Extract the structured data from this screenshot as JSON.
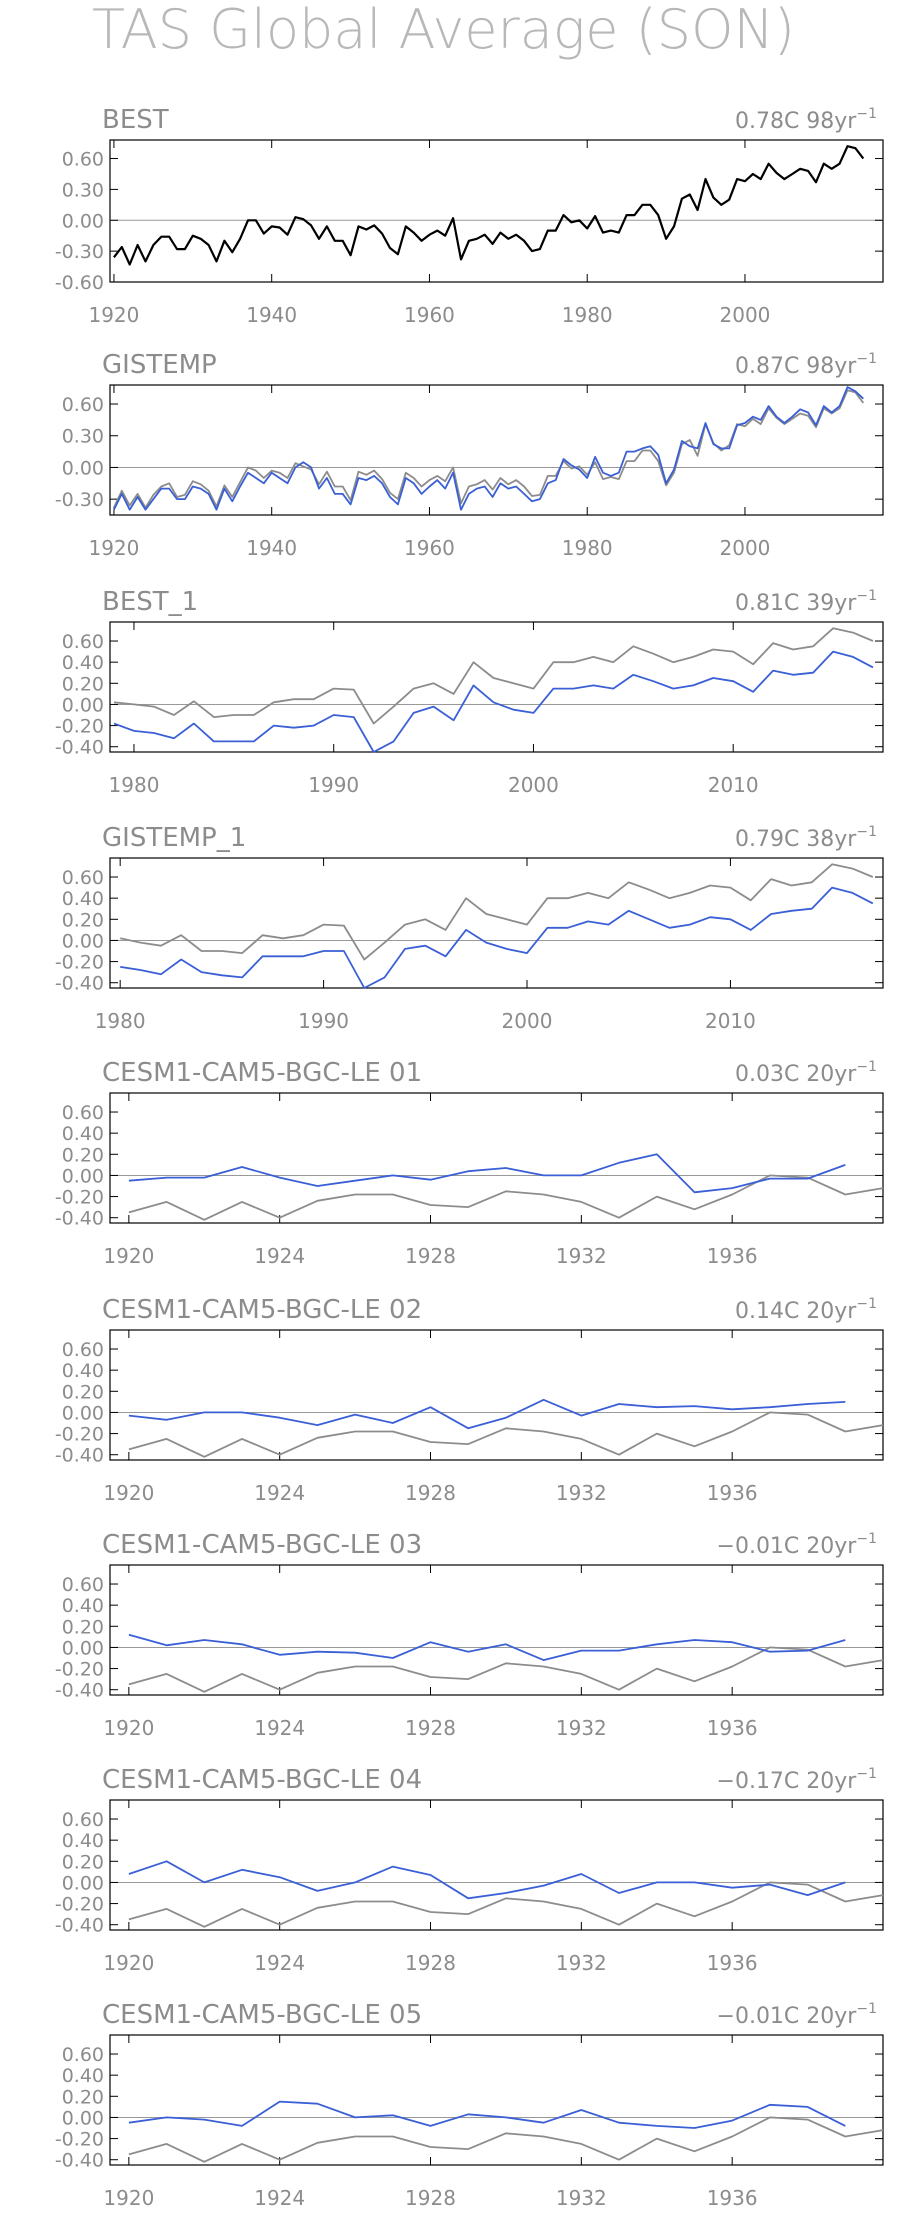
{
  "page_title": "TAS Global Average (SON)",
  "colors": {
    "observed": "#000000",
    "model": "#3a5fd6",
    "reference": "#8c8c8c",
    "axis": "#000000",
    "text": "#8c8c8c",
    "zero": "#999999"
  },
  "chart_data": [
    {
      "type": "line",
      "title": "BEST",
      "stat": "0.78C 98yr",
      "stat_exp": "−1",
      "xticks": [
        1920,
        1940,
        1960,
        1980,
        2000
      ],
      "xlim": [
        1919.5,
        2017.5
      ],
      "ylim": [
        -0.6,
        0.78
      ],
      "yticks": [
        "0.60",
        "0.30",
        "0.00",
        "-0.30",
        "-0.60"
      ],
      "series": [
        {
          "role": "observed",
          "x_start": 1920,
          "values": [
            -0.36,
            -0.26,
            -0.43,
            -0.24,
            -0.4,
            -0.24,
            -0.16,
            -0.16,
            -0.28,
            -0.28,
            -0.15,
            -0.18,
            -0.24,
            -0.4,
            -0.2,
            -0.31,
            -0.18,
            0.0,
            0.0,
            -0.13,
            -0.06,
            -0.07,
            -0.14,
            0.03,
            0.01,
            -0.05,
            -0.18,
            -0.06,
            -0.2,
            -0.2,
            -0.34,
            -0.06,
            -0.09,
            -0.05,
            -0.13,
            -0.27,
            -0.33,
            -0.06,
            -0.12,
            -0.2,
            -0.14,
            -0.1,
            -0.15,
            0.02,
            -0.38,
            -0.2,
            -0.18,
            -0.14,
            -0.23,
            -0.12,
            -0.18,
            -0.14,
            -0.2,
            -0.3,
            -0.28,
            -0.1,
            -0.1,
            0.05,
            -0.02,
            0.0,
            -0.08,
            0.04,
            -0.12,
            -0.1,
            -0.12,
            0.05,
            0.05,
            0.15,
            0.15,
            0.05,
            -0.18,
            -0.06,
            0.21,
            0.25,
            0.1,
            0.4,
            0.22,
            0.15,
            0.2,
            0.4,
            0.38,
            0.45,
            0.4,
            0.55,
            0.46,
            0.4,
            0.45,
            0.5,
            0.48,
            0.37,
            0.55,
            0.5,
            0.55,
            0.72,
            0.7,
            0.6
          ]
        }
      ]
    },
    {
      "type": "line",
      "title": "GISTEMP",
      "stat": "0.87C 98yr",
      "stat_exp": "−1",
      "xticks": [
        1920,
        1940,
        1960,
        1980,
        2000
      ],
      "xlim": [
        1919.5,
        2017.5
      ],
      "ylim": [
        -0.45,
        0.78
      ],
      "yticks": [
        "0.60",
        "0.30",
        "0.00",
        "-0.30"
      ],
      "series": [
        {
          "role": "reference",
          "x_start": 1920,
          "values": [
            -0.38,
            -0.22,
            -0.36,
            -0.25,
            -0.38,
            -0.26,
            -0.18,
            -0.15,
            -0.28,
            -0.26,
            -0.13,
            -0.16,
            -0.22,
            -0.37,
            -0.17,
            -0.28,
            -0.14,
            0.0,
            -0.03,
            -0.1,
            -0.03,
            -0.05,
            -0.1,
            0.04,
            0.01,
            -0.02,
            -0.16,
            -0.04,
            -0.18,
            -0.18,
            -0.31,
            -0.04,
            -0.07,
            -0.03,
            -0.11,
            -0.24,
            -0.3,
            -0.05,
            -0.1,
            -0.18,
            -0.12,
            -0.08,
            -0.13,
            0.0,
            -0.34,
            -0.18,
            -0.16,
            -0.12,
            -0.21,
            -0.1,
            -0.16,
            -0.12,
            -0.18,
            -0.27,
            -0.26,
            -0.08,
            -0.08,
            0.06,
            -0.01,
            0.01,
            -0.07,
            0.05,
            -0.11,
            -0.09,
            -0.11,
            0.06,
            0.06,
            0.16,
            0.16,
            0.06,
            -0.17,
            -0.05,
            0.22,
            0.26,
            0.11,
            0.41,
            0.23,
            0.16,
            0.21,
            0.41,
            0.39,
            0.46,
            0.41,
            0.56,
            0.47,
            0.41,
            0.46,
            0.51,
            0.49,
            0.38,
            0.56,
            0.51,
            0.56,
            0.73,
            0.71,
            0.61
          ]
        },
        {
          "role": "model",
          "x_start": 1920,
          "values": [
            -0.4,
            -0.25,
            -0.4,
            -0.28,
            -0.4,
            -0.3,
            -0.2,
            -0.2,
            -0.3,
            -0.3,
            -0.18,
            -0.2,
            -0.25,
            -0.4,
            -0.2,
            -0.32,
            -0.18,
            -0.05,
            -0.1,
            -0.15,
            -0.05,
            -0.1,
            -0.15,
            0.0,
            0.05,
            0.0,
            -0.2,
            -0.1,
            -0.25,
            -0.25,
            -0.35,
            -0.1,
            -0.12,
            -0.08,
            -0.15,
            -0.28,
            -0.35,
            -0.1,
            -0.15,
            -0.25,
            -0.18,
            -0.12,
            -0.2,
            -0.05,
            -0.4,
            -0.25,
            -0.2,
            -0.18,
            -0.28,
            -0.15,
            -0.2,
            -0.18,
            -0.25,
            -0.32,
            -0.3,
            -0.15,
            -0.12,
            0.08,
            0.02,
            -0.02,
            -0.1,
            0.1,
            -0.05,
            -0.08,
            -0.05,
            0.15,
            0.15,
            0.18,
            0.2,
            0.12,
            -0.15,
            -0.02,
            0.25,
            0.2,
            0.18,
            0.42,
            0.22,
            0.18,
            0.18,
            0.4,
            0.42,
            0.48,
            0.45,
            0.58,
            0.48,
            0.42,
            0.48,
            0.55,
            0.52,
            0.4,
            0.58,
            0.52,
            0.58,
            0.76,
            0.72,
            0.65
          ]
        }
      ]
    },
    {
      "type": "line",
      "title": "BEST_1",
      "stat": "0.81C 39yr",
      "stat_exp": "−1",
      "xticks": [
        1980,
        1990,
        2000,
        2010
      ],
      "xlim": [
        1978.8,
        2017.5
      ],
      "ylim": [
        -0.45,
        0.78
      ],
      "yticks": [
        "0.60",
        "0.40",
        "0.20",
        "0.00",
        "-0.20",
        "-0.40"
      ],
      "series": [
        {
          "role": "reference",
          "x_start": 1979,
          "values": [
            0.02,
            0.0,
            -0.02,
            -0.1,
            0.03,
            -0.12,
            -0.1,
            -0.1,
            0.02,
            0.05,
            0.05,
            0.15,
            0.14,
            -0.18,
            -0.02,
            0.15,
            0.2,
            0.1,
            0.4,
            0.25,
            0.2,
            0.15,
            0.4,
            0.4,
            0.45,
            0.4,
            0.55,
            0.48,
            0.4,
            0.45,
            0.52,
            0.5,
            0.38,
            0.58,
            0.52,
            0.55,
            0.72,
            0.68,
            0.6
          ]
        },
        {
          "role": "model",
          "x_start": 1979,
          "values": [
            -0.18,
            -0.25,
            -0.27,
            -0.32,
            -0.18,
            -0.35,
            -0.35,
            -0.35,
            -0.2,
            -0.22,
            -0.2,
            -0.1,
            -0.12,
            -0.45,
            -0.35,
            -0.08,
            -0.02,
            -0.15,
            0.18,
            0.02,
            -0.05,
            -0.08,
            0.15,
            0.15,
            0.18,
            0.15,
            0.28,
            0.22,
            0.15,
            0.18,
            0.25,
            0.22,
            0.12,
            0.32,
            0.28,
            0.3,
            0.5,
            0.45,
            0.35
          ]
        }
      ]
    },
    {
      "type": "line",
      "title": "GISTEMP_1",
      "stat": "0.79C 38yr",
      "stat_exp": "−1",
      "xticks": [
        1980,
        1990,
        2000,
        2010
      ],
      "xlim": [
        1979.5,
        2017.5
      ],
      "ylim": [
        -0.45,
        0.78
      ],
      "yticks": [
        "0.60",
        "0.40",
        "0.20",
        "0.00",
        "-0.20",
        "-0.40"
      ],
      "series": [
        {
          "role": "reference",
          "x_start": 1980,
          "values": [
            0.02,
            -0.02,
            -0.05,
            0.05,
            -0.1,
            -0.1,
            -0.12,
            0.05,
            0.02,
            0.05,
            0.15,
            0.14,
            -0.18,
            -0.02,
            0.15,
            0.2,
            0.1,
            0.4,
            0.25,
            0.2,
            0.15,
            0.4,
            0.4,
            0.45,
            0.4,
            0.55,
            0.48,
            0.4,
            0.45,
            0.52,
            0.5,
            0.38,
            0.58,
            0.52,
            0.55,
            0.72,
            0.68,
            0.6
          ]
        },
        {
          "role": "model",
          "x_start": 1980,
          "values": [
            -0.25,
            -0.28,
            -0.32,
            -0.18,
            -0.3,
            -0.33,
            -0.35,
            -0.15,
            -0.15,
            -0.15,
            -0.1,
            -0.1,
            -0.45,
            -0.35,
            -0.08,
            -0.05,
            -0.15,
            0.1,
            -0.02,
            -0.08,
            -0.12,
            0.12,
            0.12,
            0.18,
            0.15,
            0.28,
            0.2,
            0.12,
            0.15,
            0.22,
            0.2,
            0.1,
            0.25,
            0.28,
            0.3,
            0.5,
            0.45,
            0.35
          ]
        }
      ]
    },
    {
      "type": "line",
      "title": "CESM1-CAM5-BGC-LE 01",
      "stat": "0.03C 20yr",
      "stat_exp": "−1",
      "xticks": [
        1920,
        1924,
        1928,
        1932,
        1936
      ],
      "xlim": [
        1919.5,
        1940.0
      ],
      "ylim": [
        -0.45,
        0.78
      ],
      "yticks": [
        "0.60",
        "0.40",
        "0.20",
        "0.00",
        "-0.20",
        "-0.40"
      ],
      "series": [
        {
          "role": "reference",
          "x_start": 1920,
          "values": [
            -0.35,
            -0.25,
            -0.42,
            -0.25,
            -0.4,
            -0.24,
            -0.18,
            -0.18,
            -0.28,
            -0.3,
            -0.15,
            -0.18,
            -0.25,
            -0.4,
            -0.2,
            -0.32,
            -0.18,
            0.0,
            -0.02,
            -0.18,
            -0.12
          ]
        },
        {
          "role": "model",
          "x_start": 1920,
          "values": [
            -0.05,
            -0.02,
            -0.02,
            0.08,
            -0.02,
            -0.1,
            -0.05,
            0.0,
            -0.04,
            0.04,
            0.07,
            0.0,
            0.0,
            0.12,
            0.2,
            -0.16,
            -0.12,
            -0.03,
            -0.03,
            0.1
          ]
        }
      ]
    },
    {
      "type": "line",
      "title": "CESM1-CAM5-BGC-LE 02",
      "stat": "0.14C 20yr",
      "stat_exp": "−1",
      "xticks": [
        1920,
        1924,
        1928,
        1932,
        1936
      ],
      "xlim": [
        1919.5,
        1940.0
      ],
      "ylim": [
        -0.45,
        0.78
      ],
      "yticks": [
        "0.60",
        "0.40",
        "0.20",
        "0.00",
        "-0.20",
        "-0.40"
      ],
      "series": [
        {
          "role": "reference",
          "x_start": 1920,
          "values": [
            -0.35,
            -0.25,
            -0.42,
            -0.25,
            -0.4,
            -0.24,
            -0.18,
            -0.18,
            -0.28,
            -0.3,
            -0.15,
            -0.18,
            -0.25,
            -0.4,
            -0.2,
            -0.32,
            -0.18,
            0.0,
            -0.02,
            -0.18,
            -0.12
          ]
        },
        {
          "role": "model",
          "x_start": 1920,
          "values": [
            -0.03,
            -0.07,
            0.0,
            0.0,
            -0.05,
            -0.12,
            -0.02,
            -0.1,
            0.05,
            -0.15,
            -0.05,
            0.12,
            -0.03,
            0.08,
            0.05,
            0.06,
            0.03,
            0.05,
            0.08,
            0.1
          ]
        }
      ]
    },
    {
      "type": "line",
      "title": "CESM1-CAM5-BGC-LE 03",
      "stat": "−0.01C 20yr",
      "stat_exp": "−1",
      "xticks": [
        1920,
        1924,
        1928,
        1932,
        1936
      ],
      "xlim": [
        1919.5,
        1940.0
      ],
      "ylim": [
        -0.45,
        0.78
      ],
      "yticks": [
        "0.60",
        "0.40",
        "0.20",
        "0.00",
        "-0.20",
        "-0.40"
      ],
      "series": [
        {
          "role": "reference",
          "x_start": 1920,
          "values": [
            -0.35,
            -0.25,
            -0.42,
            -0.25,
            -0.4,
            -0.24,
            -0.18,
            -0.18,
            -0.28,
            -0.3,
            -0.15,
            -0.18,
            -0.25,
            -0.4,
            -0.2,
            -0.32,
            -0.18,
            0.0,
            -0.02,
            -0.18,
            -0.12
          ]
        },
        {
          "role": "model",
          "x_start": 1920,
          "values": [
            0.12,
            0.02,
            0.07,
            0.03,
            -0.07,
            -0.04,
            -0.05,
            -0.1,
            0.05,
            -0.04,
            0.03,
            -0.12,
            -0.03,
            -0.03,
            0.03,
            0.07,
            0.05,
            -0.04,
            -0.03,
            0.07
          ]
        }
      ]
    },
    {
      "type": "line",
      "title": "CESM1-CAM5-BGC-LE 04",
      "stat": "−0.17C 20yr",
      "stat_exp": "−1",
      "xticks": [
        1920,
        1924,
        1928,
        1932,
        1936
      ],
      "xlim": [
        1919.5,
        1940.0
      ],
      "ylim": [
        -0.45,
        0.78
      ],
      "yticks": [
        "0.60",
        "0.40",
        "0.20",
        "0.00",
        "-0.20",
        "-0.40"
      ],
      "series": [
        {
          "role": "reference",
          "x_start": 1920,
          "values": [
            -0.35,
            -0.25,
            -0.42,
            -0.25,
            -0.4,
            -0.24,
            -0.18,
            -0.18,
            -0.28,
            -0.3,
            -0.15,
            -0.18,
            -0.25,
            -0.4,
            -0.2,
            -0.32,
            -0.18,
            0.0,
            -0.02,
            -0.18,
            -0.12
          ]
        },
        {
          "role": "model",
          "x_start": 1920,
          "values": [
            0.08,
            0.2,
            0.0,
            0.12,
            0.05,
            -0.08,
            0.0,
            0.15,
            0.07,
            -0.15,
            -0.1,
            -0.03,
            0.08,
            -0.1,
            0.0,
            0.0,
            -0.05,
            -0.02,
            -0.12,
            0.0
          ]
        }
      ]
    },
    {
      "type": "line",
      "title": "CESM1-CAM5-BGC-LE 05",
      "stat": "−0.01C 20yr",
      "stat_exp": "−1",
      "xticks": [
        1920,
        1924,
        1928,
        1932,
        1936
      ],
      "xlim": [
        1919.5,
        1940.0
      ],
      "ylim": [
        -0.45,
        0.78
      ],
      "yticks": [
        "0.60",
        "0.40",
        "0.20",
        "0.00",
        "-0.20",
        "-0.40"
      ],
      "series": [
        {
          "role": "reference",
          "x_start": 1920,
          "values": [
            -0.35,
            -0.25,
            -0.42,
            -0.25,
            -0.4,
            -0.24,
            -0.18,
            -0.18,
            -0.28,
            -0.3,
            -0.15,
            -0.18,
            -0.25,
            -0.4,
            -0.2,
            -0.32,
            -0.18,
            0.0,
            -0.02,
            -0.18,
            -0.12
          ]
        },
        {
          "role": "model",
          "x_start": 1920,
          "values": [
            -0.05,
            0.0,
            -0.02,
            -0.08,
            0.15,
            0.13,
            0.0,
            0.02,
            -0.08,
            0.03,
            0.0,
            -0.05,
            0.07,
            -0.05,
            -0.08,
            -0.1,
            -0.03,
            0.12,
            0.1,
            -0.08
          ]
        }
      ]
    }
  ]
}
